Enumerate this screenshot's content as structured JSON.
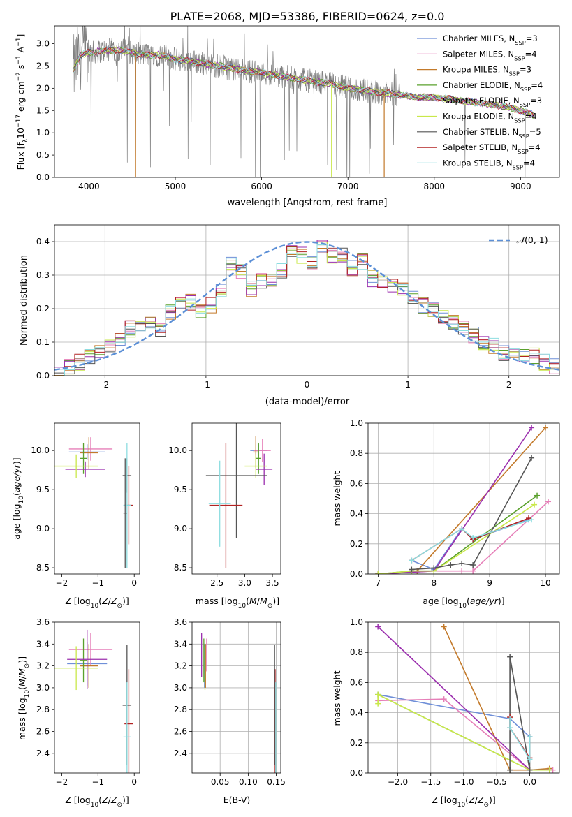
{
  "figure_title": "PLATE=2068, MJD=53386, FIBERID=0624, z=0.0",
  "colors": {
    "Chabrier MILES": "#6f8fd8",
    "Salpeter MILES": "#e67fb8",
    "Kroupa MILES": "#c37a2b",
    "Chabrier ELODIE": "#5aa02c",
    "Salpeter ELODIE": "#9b2fae",
    "Kroupa ELODIE": "#c9e84a",
    "Chabrier STELIB": "#555555",
    "Salpeter STELIB": "#b22222",
    "Kroupa STELIB": "#8ddde0",
    "normal": "#5b8fd6",
    "data": "#808080"
  },
  "chart_data": [
    {
      "id": "spectrum",
      "type": "line",
      "title": "PLATE=2068, MJD=53386, FIBERID=0624, z=0.0",
      "xlabel": "wavelength [Angstrom, rest frame]",
      "ylabel": "Flux [f_λ 10^-17 erg cm^-2 s^-1 A^-1]",
      "xlim": [
        3600,
        9450
      ],
      "ylim": [
        0.0,
        3.4
      ],
      "xticks": [
        4000,
        5000,
        6000,
        7000,
        8000,
        9000
      ],
      "yticks": [
        0.0,
        0.5,
        1.0,
        1.5,
        2.0,
        2.5,
        3.0
      ],
      "legend_position": "top-right",
      "legend": [
        "Chabrier MILES, N_SSP=3",
        "Salpeter MILES, N_SSP=4",
        "Kroupa MILES, N_SSP=3",
        "Chabrier ELODIE, N_SSP=4",
        "Salpeter ELODIE, N_SSP=3",
        "Kroupa ELODIE, N_SSP=4",
        "Chabrier STELIB, N_SSP=5",
        "Salpeter STELIB, N_SSP=4",
        "Kroupa STELIB, N_SSP=4"
      ],
      "continuum": {
        "x": [
          3820,
          3900,
          4000,
          4200,
          4400,
          4600,
          4800,
          5000,
          5200,
          5500,
          5800,
          6000,
          6300,
          6600,
          6800,
          7000,
          7200,
          7400,
          7600,
          7800,
          8000,
          8200,
          8400,
          8600,
          8800,
          9000,
          9150
        ],
        "y": [
          2.4,
          2.75,
          2.8,
          2.85,
          2.85,
          2.75,
          2.75,
          2.65,
          2.6,
          2.5,
          2.4,
          2.35,
          2.25,
          2.15,
          2.1,
          2.0,
          1.95,
          1.9,
          1.85,
          1.8,
          1.8,
          1.75,
          1.7,
          1.65,
          1.6,
          1.5,
          1.4
        ]
      },
      "model_dropouts": [
        {
          "series": "Kroupa MILES",
          "x": 4540
        },
        {
          "series": "Kroupa ELODIE",
          "x": 6810
        },
        {
          "series": "Kroupa MILES",
          "x": 7420
        }
      ]
    },
    {
      "id": "residual-histogram",
      "type": "line",
      "xlabel": "(data-model)/error",
      "ylabel": "Normed distribution",
      "xlim": [
        -2.5,
        2.5
      ],
      "ylim": [
        0.0,
        0.45
      ],
      "xticks": [
        -2,
        -1,
        0,
        1,
        2
      ],
      "yticks": [
        0.0,
        0.1,
        0.2,
        0.3,
        0.4
      ],
      "legend": [
        "N(0,1)"
      ],
      "legend_position": "top-right",
      "bin_edges": [
        -2.5,
        -2.4,
        -2.3,
        -2.2,
        -2.1,
        -2.0,
        -1.9,
        -1.8,
        -1.7,
        -1.6,
        -1.5,
        -1.4,
        -1.3,
        -1.2,
        -1.1,
        -1.0,
        -0.9,
        -0.8,
        -0.7,
        -0.6,
        -0.5,
        -0.4,
        -0.3,
        -0.2,
        -0.1,
        0.0,
        0.1,
        0.2,
        0.3,
        0.4,
        0.5,
        0.6,
        0.7,
        0.8,
        0.9,
        1.0,
        1.1,
        1.2,
        1.3,
        1.4,
        1.5,
        1.6,
        1.7,
        1.8,
        1.9,
        2.0,
        2.1,
        2.2,
        2.3,
        2.4,
        2.5
      ],
      "histogram_mean": [
        0.01,
        0.03,
        0.04,
        0.06,
        0.07,
        0.09,
        0.11,
        0.14,
        0.15,
        0.15,
        0.14,
        0.19,
        0.21,
        0.22,
        0.19,
        0.21,
        0.25,
        0.33,
        0.31,
        0.26,
        0.28,
        0.29,
        0.31,
        0.37,
        0.36,
        0.34,
        0.39,
        0.36,
        0.36,
        0.32,
        0.34,
        0.29,
        0.28,
        0.27,
        0.26,
        0.23,
        0.21,
        0.2,
        0.18,
        0.16,
        0.14,
        0.12,
        0.1,
        0.09,
        0.07,
        0.07,
        0.06,
        0.06,
        0.04,
        0.03
      ],
      "normal_curve": {
        "name": "N(0,1)",
        "mean": 0,
        "sigma": 1
      }
    },
    {
      "id": "age-vs-Z",
      "type": "scatter",
      "xlabel": "Z [log10(Z/Z_sun)]",
      "ylabel": "age [log10(age/yr)]",
      "xlim": [
        -2.2,
        0.15
      ],
      "ylim": [
        8.42,
        10.35
      ],
      "xticks": [
        -2,
        -1,
        0
      ],
      "yticks": [
        8.5,
        9.0,
        9.5,
        10.0
      ],
      "points": [
        {
          "series": "Chabrier MILES",
          "x": -1.3,
          "y": 9.98,
          "xerr": 0.5,
          "yerr": 0.1
        },
        {
          "series": "Salpeter MILES",
          "x": -1.2,
          "y": 10.02,
          "xerr": 0.6,
          "yerr": 0.15
        },
        {
          "series": "Kroupa MILES",
          "x": -1.25,
          "y": 9.97,
          "xerr": 0.25,
          "yerr": 0.2
        },
        {
          "series": "Chabrier ELODIE",
          "x": -1.4,
          "y": 9.9,
          "xerr": 0.1,
          "yerr": 0.2
        },
        {
          "series": "Salpeter ELODIE",
          "x": -1.35,
          "y": 9.76,
          "xerr": 0.55,
          "yerr": 0.1
        },
        {
          "series": "Kroupa ELODIE",
          "x": -1.6,
          "y": 9.8,
          "xerr": 0.6,
          "yerr": 0.15
        },
        {
          "series": "Chabrier STELIB",
          "x": -0.2,
          "y": 9.68,
          "xerr": 0.12,
          "yerr": 0.22
        },
        {
          "series": "Salpeter STELIB",
          "x": -0.15,
          "y": 9.3,
          "xerr": 0.12,
          "yerr": 0.5
        },
        {
          "series": "Kroupa STELIB",
          "x": -0.2,
          "y": 9.3,
          "xerr": 0.1,
          "yerr": 0.8
        },
        {
          "series": "Chabrier STELIB",
          "x": -0.25,
          "y": 9.2,
          "xerr": 0.05,
          "yerr": 0.7
        }
      ]
    },
    {
      "id": "age-vs-mass",
      "type": "scatter",
      "xlabel": "mass [log10(M/M_sun)]",
      "ylabel": "",
      "xlim": [
        2.05,
        3.65
      ],
      "ylim": [
        8.42,
        10.35
      ],
      "xticks": [
        2.5,
        3.0,
        3.5
      ],
      "yticks": [
        8.5,
        9.0,
        9.5,
        10.0
      ],
      "points": [
        {
          "series": "Chabrier MILES",
          "x": 3.25,
          "y": 10.0,
          "xerr": 0.15,
          "yerr": 0.08
        },
        {
          "series": "Salpeter MILES",
          "x": 3.32,
          "y": 10.0,
          "xerr": 0.15,
          "yerr": 0.15
        },
        {
          "series": "Kroupa MILES",
          "x": 3.2,
          "y": 9.98,
          "xerr": 0.05,
          "yerr": 0.2
        },
        {
          "series": "Chabrier ELODIE",
          "x": 3.25,
          "y": 9.9,
          "xerr": 0.04,
          "yerr": 0.2
        },
        {
          "series": "Salpeter ELODIE",
          "x": 3.35,
          "y": 9.76,
          "xerr": 0.15,
          "yerr": 0.2
        },
        {
          "series": "Kroupa ELODIE",
          "x": 3.2,
          "y": 9.8,
          "xerr": 0.2,
          "yerr": 0.15
        },
        {
          "series": "Chabrier STELIB",
          "x": 2.85,
          "y": 9.68,
          "xerr": 0.55,
          "yerr": 0.8
        },
        {
          "series": "Salpeter STELIB",
          "x": 2.66,
          "y": 9.3,
          "xerr": 0.3,
          "yerr": 0.8
        },
        {
          "series": "Kroupa STELIB",
          "x": 2.55,
          "y": 9.32,
          "xerr": 0.2,
          "yerr": 0.55
        }
      ]
    },
    {
      "id": "weight-vs-age",
      "type": "line",
      "xlabel": "age [log10(age/yr)]",
      "ylabel": "mass weight",
      "xlim": [
        6.82,
        10.25
      ],
      "ylim": [
        0.0,
        1.0
      ],
      "xticks": [
        7,
        8,
        9,
        10
      ],
      "yticks": [
        0.0,
        0.2,
        0.4,
        0.6,
        0.8,
        1.0
      ],
      "series": [
        {
          "name": "Chabrier MILES",
          "x": [
            7.6,
            8.0,
            8.5,
            8.7,
            9.7
          ],
          "y": [
            0.09,
            0.03,
            0.3,
            0.23,
            0.36
          ]
        },
        {
          "name": "Salpeter MILES",
          "x": [
            7.0,
            8.0,
            8.5,
            8.7,
            10.05
          ],
          "y": [
            0.0,
            0.02,
            0.02,
            0.02,
            0.48
          ]
        },
        {
          "name": "Kroupa MILES",
          "x": [
            7.0,
            7.7,
            10.0
          ],
          "y": [
            0.0,
            0.02,
            0.97
          ]
        },
        {
          "name": "Chabrier ELODIE",
          "x": [
            7.0,
            7.6,
            8.0,
            9.85
          ],
          "y": [
            0.0,
            0.02,
            0.02,
            0.52
          ]
        },
        {
          "name": "Salpeter ELODIE",
          "x": [
            7.0,
            8.0,
            9.75
          ],
          "y": [
            0.0,
            0.02,
            0.97
          ]
        },
        {
          "name": "Kroupa ELODIE",
          "x": [
            7.0,
            7.6,
            8.0,
            9.8
          ],
          "y": [
            0.0,
            0.02,
            0.02,
            0.46
          ]
        },
        {
          "name": "Chabrier STELIB",
          "x": [
            7.6,
            8.0,
            8.3,
            8.5,
            8.7,
            9.75
          ],
          "y": [
            0.03,
            0.04,
            0.06,
            0.07,
            0.06,
            0.77
          ]
        },
        {
          "name": "Salpeter STELIB",
          "x": [
            7.6,
            8.5,
            8.7,
            9.7
          ],
          "y": [
            0.09,
            0.3,
            0.23,
            0.37
          ]
        },
        {
          "name": "Kroupa STELIB",
          "x": [
            7.6,
            8.5,
            8.7,
            9.75
          ],
          "y": [
            0.09,
            0.3,
            0.24,
            0.36
          ]
        }
      ]
    },
    {
      "id": "mass-vs-Z",
      "type": "scatter",
      "xlabel": "Z [log10(Z/Z_sun)]",
      "ylabel": "mass [log10(M/M_sun)]",
      "xlim": [
        -2.2,
        0.15
      ],
      "ylim": [
        2.22,
        3.6
      ],
      "xticks": [
        -2,
        -1,
        0
      ],
      "yticks": [
        2.4,
        2.6,
        2.8,
        3.0,
        3.2,
        3.4,
        3.6
      ],
      "points": [
        {
          "series": "Chabrier MILES",
          "x": -1.3,
          "y": 3.22,
          "xerr": 0.55,
          "yerr": 0.2
        },
        {
          "series": "Salpeter MILES",
          "x": -1.2,
          "y": 3.35,
          "xerr": 0.6,
          "yerr": 0.15
        },
        {
          "series": "Kroupa MILES",
          "x": -1.25,
          "y": 3.2,
          "xerr": 0.25,
          "yerr": 0.2
        },
        {
          "series": "Chabrier ELODIE",
          "x": -1.4,
          "y": 3.25,
          "xerr": 0.1,
          "yerr": 0.2
        },
        {
          "series": "Salpeter ELODIE",
          "x": -1.3,
          "y": 3.26,
          "xerr": 0.55,
          "yerr": 0.27
        },
        {
          "series": "Kroupa ELODIE",
          "x": -1.6,
          "y": 3.18,
          "xerr": 0.6,
          "yerr": 0.2
        },
        {
          "series": "Chabrier STELIB",
          "x": -0.2,
          "y": 2.84,
          "xerr": 0.12,
          "yerr": 0.55
        },
        {
          "series": "Salpeter STELIB",
          "x": -0.15,
          "y": 2.67,
          "xerr": 0.12,
          "yerr": 0.5
        },
        {
          "series": "Kroupa STELIB",
          "x": -0.2,
          "y": 2.55,
          "xerr": 0.1,
          "yerr": 0.5
        }
      ]
    },
    {
      "id": "mass-vs-EBV",
      "type": "scatter",
      "xlabel": "E(B-V)",
      "ylabel": "",
      "xlim": [
        0.0,
        0.158
      ],
      "ylim": [
        2.22,
        3.6
      ],
      "xticks": [
        0.05,
        0.1,
        0.15
      ],
      "yticks": [
        2.4,
        2.6,
        2.8,
        3.0,
        3.2,
        3.4,
        3.6
      ],
      "points": [
        {
          "series": "Salpeter ELODIE",
          "x": 0.017,
          "y": 3.3,
          "yerr": 0.2
        },
        {
          "series": "Salpeter MILES",
          "x": 0.026,
          "y": 3.3,
          "yerr": 0.15
        },
        {
          "series": "Chabrier MILES",
          "x": 0.022,
          "y": 3.2,
          "yerr": 0.2
        },
        {
          "series": "Kroupa ELODIE",
          "x": 0.023,
          "y": 3.18,
          "yerr": 0.2
        },
        {
          "series": "Kroupa MILES",
          "x": 0.024,
          "y": 3.2,
          "yerr": 0.2
        },
        {
          "series": "Chabrier ELODIE",
          "x": 0.021,
          "y": 3.25,
          "yerr": 0.2
        },
        {
          "series": "Salpeter STELIB",
          "x": 0.148,
          "y": 2.67,
          "yerr": 0.5
        },
        {
          "series": "Chabrier STELIB",
          "x": 0.147,
          "y": 2.84,
          "yerr": 0.55
        },
        {
          "series": "Kroupa STELIB",
          "x": 0.149,
          "y": 2.55,
          "yerr": 0.5
        }
      ]
    },
    {
      "id": "weight-vs-Z",
      "type": "line",
      "xlabel": "Z [log10(Z/Z_sun)]",
      "ylabel": "mass weight",
      "xlim": [
        -2.45,
        0.45
      ],
      "ylim": [
        0.0,
        1.0
      ],
      "xticks": [
        -2.0,
        -1.5,
        -1.0,
        -0.5,
        0.0
      ],
      "yticks": [
        0.0,
        0.2,
        0.4,
        0.6,
        0.8,
        1.0
      ],
      "series": [
        {
          "name": "Chabrier MILES",
          "x": [
            -2.3,
            -0.3,
            0.0
          ],
          "y": [
            0.52,
            0.36,
            0.24
          ]
        },
        {
          "name": "Salpeter MILES",
          "x": [
            -2.3,
            -1.3,
            0.0,
            0.35
          ],
          "y": [
            0.48,
            0.49,
            0.02,
            0.02
          ]
        },
        {
          "name": "Kroupa MILES",
          "x": [
            -1.3,
            -0.3,
            0.0,
            0.3
          ],
          "y": [
            0.97,
            0.02,
            0.02,
            0.03
          ]
        },
        {
          "name": "Chabrier ELODIE",
          "x": [
            -2.3,
            0.0,
            0.3
          ],
          "y": [
            0.52,
            0.02,
            0.02
          ]
        },
        {
          "name": "Salpeter ELODIE",
          "x": [
            -2.3,
            0.0,
            0.3
          ],
          "y": [
            0.97,
            0.02,
            0.02
          ]
        },
        {
          "name": "Kroupa ELODIE",
          "x": [
            -2.3,
            -2.3,
            0.0,
            0.3
          ],
          "y": [
            0.46,
            0.52,
            0.02,
            0.02
          ]
        },
        {
          "name": "Chabrier STELIB",
          "x": [
            -0.3,
            -0.3,
            0.0,
            0.0
          ],
          "y": [
            0.02,
            0.77,
            0.02,
            0.24
          ]
        },
        {
          "name": "Salpeter STELIB",
          "x": [
            -0.3,
            -0.3,
            0.0
          ],
          "y": [
            0.37,
            0.3,
            0.1
          ]
        },
        {
          "name": "Kroupa STELIB",
          "x": [
            -0.3,
            -0.3,
            0.0,
            0.0
          ],
          "y": [
            0.36,
            0.3,
            0.09,
            0.24
          ]
        }
      ]
    }
  ]
}
